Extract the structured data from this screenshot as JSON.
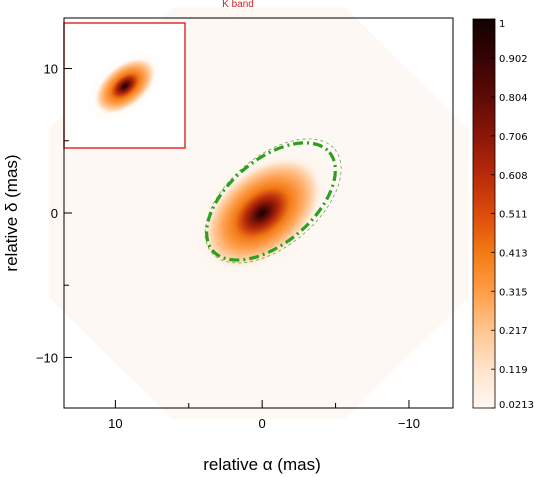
{
  "chart_data": {
    "type": "heatmap",
    "title": "K band",
    "xlabel": "relative α (mas)",
    "ylabel": "relative δ (mas)",
    "xlim": [
      13.5,
      -13.0
    ],
    "ylim": [
      -13.5,
      13.5
    ],
    "x_axis_reversed": true,
    "x_ticks": [
      {
        "value": 10,
        "label": "10"
      },
      {
        "value": 0,
        "label": "0"
      },
      {
        "value": -10,
        "label": "−10"
      }
    ],
    "y_ticks": [
      {
        "value": 10,
        "label": "10"
      },
      {
        "value": 0,
        "label": "0"
      },
      {
        "value": -10,
        "label": "−10"
      }
    ],
    "colorbar": {
      "min": 0.0213,
      "max": 1,
      "colormap": "white-orange-red-black",
      "ticks": [
        {
          "value": 1,
          "label": "1"
        },
        {
          "value": 0.902,
          "label": "0.902"
        },
        {
          "value": 0.804,
          "label": "0.804"
        },
        {
          "value": 0.706,
          "label": "0.706"
        },
        {
          "value": 0.608,
          "label": "0.608"
        },
        {
          "value": 0.511,
          "label": "0.511"
        },
        {
          "value": 0.413,
          "label": "0.413"
        },
        {
          "value": 0.315,
          "label": "0.315"
        },
        {
          "value": 0.217,
          "label": "0.217"
        },
        {
          "value": 0.119,
          "label": "0.119"
        },
        {
          "value": 0.0213,
          "label": "0.0213"
        }
      ]
    },
    "main_source": {
      "center": [
        0,
        0
      ],
      "peak": 1.0
    },
    "ring_annotation": {
      "style": "dash-dot",
      "color": "#2f9e1f",
      "center": [
        -0.6,
        0.8
      ],
      "semi_major_mas": 5.2,
      "semi_minor_mas": 2.9,
      "position_angle_deg": 40
    },
    "inset": {
      "shows": "zoomed-out view of source",
      "border_color": "#e03030"
    }
  },
  "colors": {
    "ring": "#2f9e1f",
    "inset_border": "#e03030",
    "title": "#cc1f1f"
  }
}
